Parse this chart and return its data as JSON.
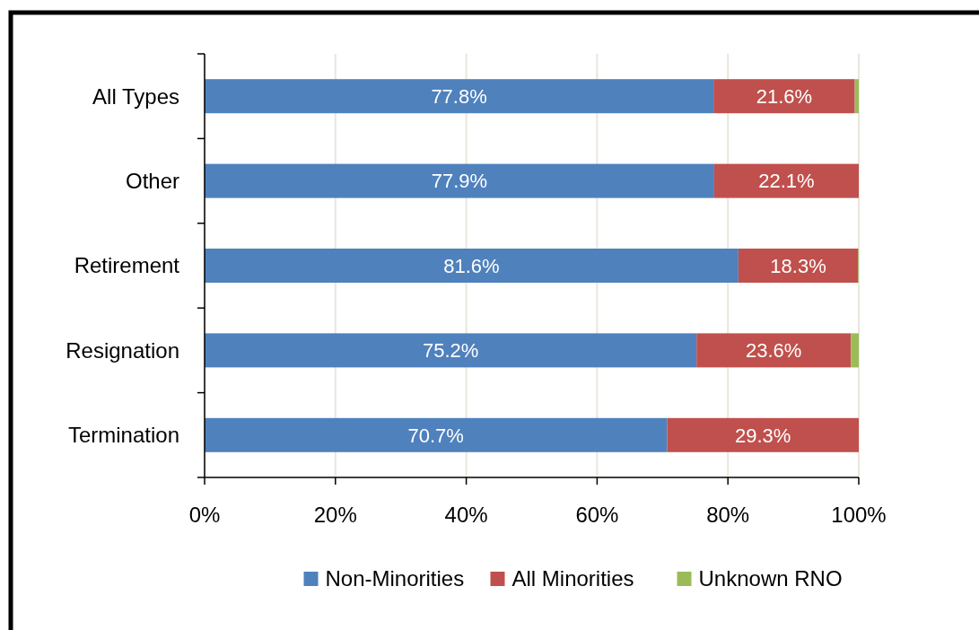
{
  "chart_data": {
    "type": "bar",
    "orientation": "horizontal",
    "stacked": true,
    "categories": [
      "All Types",
      "Other",
      "Retirement",
      "Resignation",
      "Termination"
    ],
    "series": [
      {
        "name": "Non-Minorities",
        "color": "#4f81bd",
        "values": [
          77.8,
          77.9,
          81.6,
          75.2,
          70.7
        ],
        "value_labels": [
          "77.8%",
          "77.9%",
          "81.6%",
          "75.2%",
          "70.7%"
        ]
      },
      {
        "name": "All Minorities",
        "color": "#c0504d",
        "values": [
          21.6,
          22.1,
          18.3,
          23.6,
          29.3
        ],
        "value_labels": [
          "21.6%",
          "22.1%",
          "18.3%",
          "23.6%",
          "29.3%"
        ]
      },
      {
        "name": "Unknown RNO",
        "color": "#9bbb59",
        "values": [
          0.6,
          0,
          0.1,
          1.2,
          0
        ]
      }
    ],
    "xlim": [
      0,
      100
    ],
    "xticks": [
      {
        "value": 0,
        "label": "0%"
      },
      {
        "value": 20,
        "label": "20%"
      },
      {
        "value": 40,
        "label": "40%"
      },
      {
        "value": 60,
        "label": "60%"
      },
      {
        "value": 80,
        "label": "80%"
      },
      {
        "value": 100,
        "label": "100%"
      }
    ],
    "grid": "x",
    "legend": "bottom"
  }
}
